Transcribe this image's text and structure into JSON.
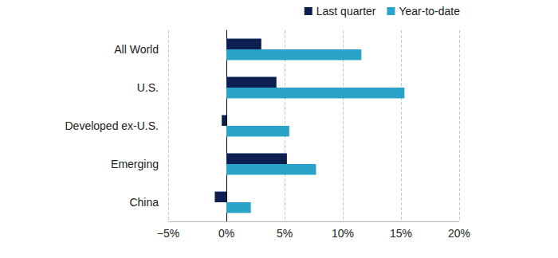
{
  "chart_data": {
    "type": "bar",
    "orientation": "horizontal",
    "categories": [
      "All World",
      "U.S.",
      "Developed ex-U.S.",
      "Emerging",
      "China"
    ],
    "series": [
      {
        "name": "Last quarter",
        "color": "#0d1f4e",
        "values": [
          3.0,
          4.3,
          -0.4,
          5.2,
          -1.0
        ]
      },
      {
        "name": "Year-to-date",
        "color": "#2aa3c8",
        "values": [
          11.6,
          15.3,
          5.4,
          7.7,
          2.1
        ]
      }
    ],
    "xlim": [
      -5,
      20
    ],
    "xticks": [
      {
        "value": -5,
        "label": "−5%"
      },
      {
        "value": 0,
        "label": "0%"
      },
      {
        "value": 5,
        "label": "5%"
      },
      {
        "value": 10,
        "label": "10%"
      },
      {
        "value": 15,
        "label": "15%"
      },
      {
        "value": 20,
        "label": "20%"
      }
    ],
    "grid": true,
    "legend": "top-right"
  }
}
